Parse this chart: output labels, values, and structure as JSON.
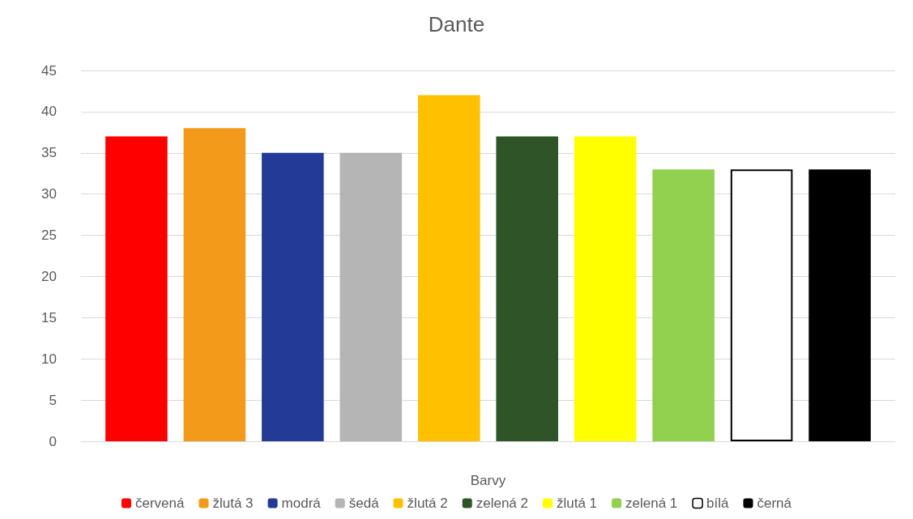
{
  "chart_data": {
    "type": "bar",
    "title": "Dante",
    "categories": [
      null
    ],
    "xlabel": "Barvy",
    "series": [
      {
        "name": "červená",
        "color": "#ff0000",
        "values": [
          37
        ]
      },
      {
        "name": "žlutá 3",
        "color": "#f39a1b",
        "values": [
          38
        ]
      },
      {
        "name": "modrá",
        "color": "#233b96",
        "values": [
          35
        ]
      },
      {
        "name": "šedá",
        "color": "#b5b5b5",
        "values": [
          35
        ]
      },
      {
        "name": "žlutá 2",
        "color": "#ffc000",
        "values": [
          42
        ]
      },
      {
        "name": "zelená 2",
        "color": "#2e5427",
        "values": [
          37
        ]
      },
      {
        "name": "žlutá 1",
        "color": "#ffff00",
        "values": [
          37
        ]
      },
      {
        "name": "zelená 1",
        "color": "#92d050",
        "values": [
          33
        ]
      },
      {
        "name": "bílá",
        "color": "#ffffff",
        "values": [
          33
        ]
      },
      {
        "name": "černá",
        "color": "#000000",
        "values": [
          33
        ]
      }
    ],
    "ylim": [
      0,
      45
    ],
    "yticks": [
      0,
      5,
      10,
      15,
      20,
      25,
      30,
      35,
      40,
      45
    ],
    "grid": "y",
    "legend": "bottom"
  }
}
